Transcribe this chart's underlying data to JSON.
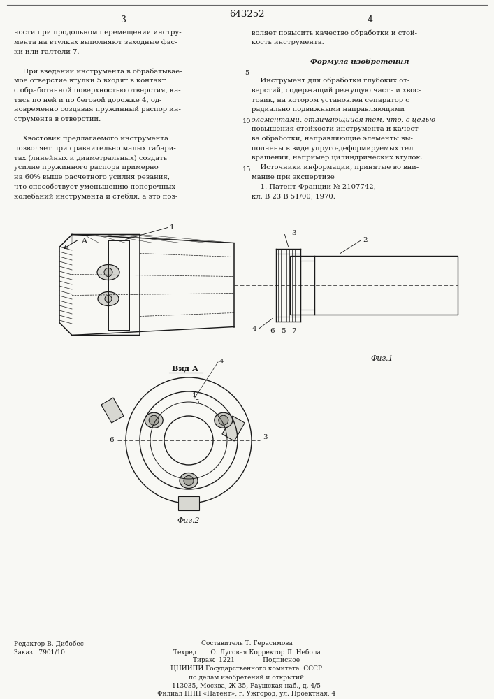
{
  "page_color": "#f8f8f4",
  "patent_number": "643252",
  "page_left": "3",
  "page_right": "4",
  "left_column_text": [
    "ности при продольном перемещении инстру-",
    "мента на втулках выполняют заходные фас-",
    "ки или галтели 7.",
    "",
    "    При введении инструмента в обрабатывае-",
    "мое отверстие втулки 5 входят в контакт",
    "с обработанной поверхностью отверстия, ка-",
    "тясь по ней и по беговой дорожке 4, од-",
    "новременно создавая пружинный распор ин-",
    "струмента в отверстии.",
    "",
    "    Хвостовик предлагаемого инструмента",
    "позволяет при сравнительно малых габари-",
    "тах (линейных и диаметральных) создать",
    "усилие пружинного распора примерно",
    "на 60% выше расчетного усилия резания,",
    "что способствует уменьшению поперечных",
    "колебаний инструмента и стебля, а это поз-"
  ],
  "right_col_normal": [
    [
      "воляет повысить качество обработки и стой-",
      false
    ],
    [
      "кость инструмента.",
      false
    ],
    [
      "",
      false
    ],
    [
      "Формула изобретения",
      true
    ],
    [
      "",
      false
    ],
    [
      "    Инструмент для обработки глубоких от-",
      false
    ],
    [
      "верстий, содержащий режущую часть и хвос-",
      false
    ],
    [
      "товик, на котором установлен сепаратор с",
      false
    ],
    [
      "радиально подвижными направляющими",
      false
    ],
    [
      "элементами, отличающийся тем, что, с целью",
      false
    ],
    [
      "повышения стойкости инструмента и качест-",
      false
    ],
    [
      "ва обработки, направляющие элементы вы-",
      false
    ],
    [
      "полнены в виде упруго-деформируемых тел",
      false
    ],
    [
      "вращения, например цилиндрических втулок.",
      false
    ],
    [
      "    Источники информации, принятые во вни-",
      false
    ],
    [
      "мание при экспертизе",
      false
    ],
    [
      "    1. Патент Франции № 2107742,",
      false
    ],
    [
      "кл. В 23 В 51/00, 1970.",
      false
    ]
  ],
  "italic_line": "элементами, отличающийся тем, что, с целью",
  "fig1_label": "Фиг.1",
  "fig2_label": "Фиг.2",
  "vid_a_label": "Вид А",
  "footer_left_lines": [
    "Редактор В. Дибобес",
    "Заказ   7901/10"
  ],
  "footer_center_lines": [
    "Составитель Т. Герасимова",
    "Техред       О. Луговая Корректор Л. Небола",
    "Тираж  1221              Подписное",
    "ЦНИИПИ Государственного комитета  СССР",
    "по делам изобретений и открытий",
    "113035, Москва, Ж-35, Раушская наб., д. 4/5",
    "Филиал ПНП «Патент», г. Ужгород, ул. Проектная, 4"
  ],
  "tc": "#1a1a1a"
}
